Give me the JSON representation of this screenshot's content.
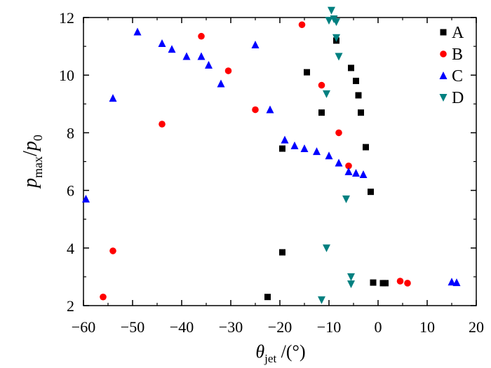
{
  "chart_data": {
    "type": "scatter",
    "title": "",
    "xlabel": {
      "symbol": "θ",
      "subscript": "jet",
      "unit": " /(°)"
    },
    "ylabel": {
      "numerator": "p",
      "numerator_sub": "max",
      "slash": "/",
      "denominator": "p",
      "denominator_sub": "0"
    },
    "xlim": [
      -60,
      20
    ],
    "ylim": [
      2,
      12
    ],
    "xticks": [
      -60,
      -50,
      -40,
      -30,
      -20,
      -10,
      0,
      10,
      20
    ],
    "yticks": [
      2,
      4,
      6,
      8,
      10,
      12
    ],
    "grid": false,
    "legend_position": "top-right",
    "series": [
      {
        "name": "A",
        "marker": "square",
        "color": "#000000",
        "points": [
          [
            -22.5,
            2.3
          ],
          [
            -19.5,
            3.85
          ],
          [
            -19.5,
            7.45
          ],
          [
            -14.5,
            10.1
          ],
          [
            -11.5,
            8.7
          ],
          [
            -8.5,
            11.2
          ],
          [
            -5.5,
            10.25
          ],
          [
            -4.5,
            9.8
          ],
          [
            -4.0,
            9.3
          ],
          [
            -3.5,
            8.7
          ],
          [
            -2.5,
            7.5
          ],
          [
            -1.5,
            5.95
          ],
          [
            -1.0,
            2.8
          ],
          [
            1.0,
            2.78
          ],
          [
            1.5,
            2.78
          ]
        ]
      },
      {
        "name": "B",
        "marker": "circle",
        "color": "#ff0000",
        "points": [
          [
            -56.0,
            2.3
          ],
          [
            -54.0,
            3.9
          ],
          [
            -44.0,
            8.3
          ],
          [
            -36.0,
            11.35
          ],
          [
            -30.5,
            10.15
          ],
          [
            -25.0,
            8.8
          ],
          [
            -15.5,
            11.75
          ],
          [
            -11.5,
            9.65
          ],
          [
            -8.0,
            8.0
          ],
          [
            -6.0,
            6.85
          ],
          [
            4.5,
            2.85
          ],
          [
            6.0,
            2.78
          ]
        ]
      },
      {
        "name": "C",
        "marker": "triangle-up",
        "color": "#0000ff",
        "points": [
          [
            -59.5,
            5.7
          ],
          [
            -54.0,
            9.2
          ],
          [
            -49.0,
            11.5
          ],
          [
            -44.0,
            11.1
          ],
          [
            -42.0,
            10.9
          ],
          [
            -39.0,
            10.65
          ],
          [
            -36.0,
            10.65
          ],
          [
            -34.5,
            10.35
          ],
          [
            -32.0,
            9.7
          ],
          [
            -25.0,
            11.05
          ],
          [
            -22.0,
            8.8
          ],
          [
            -19.0,
            7.75
          ],
          [
            -17.0,
            7.55
          ],
          [
            -15.0,
            7.45
          ],
          [
            -12.5,
            7.35
          ],
          [
            -10.0,
            7.2
          ],
          [
            -8.0,
            6.95
          ],
          [
            -6.0,
            6.65
          ],
          [
            -4.5,
            6.6
          ],
          [
            -3.0,
            6.55
          ],
          [
            15.0,
            2.82
          ],
          [
            16.0,
            2.8
          ]
        ]
      },
      {
        "name": "D",
        "marker": "triangle-down",
        "color": "#008080",
        "points": [
          [
            -11.5,
            2.2
          ],
          [
            -10.5,
            4.0
          ],
          [
            -10.5,
            9.35
          ],
          [
            -10.0,
            11.9
          ],
          [
            -9.5,
            12.25
          ],
          [
            -9.0,
            11.95
          ],
          [
            -8.5,
            11.85
          ],
          [
            -8.5,
            11.3
          ],
          [
            -8.0,
            10.65
          ],
          [
            -6.5,
            5.7
          ],
          [
            -5.5,
            3.0
          ],
          [
            -5.5,
            2.75
          ]
        ]
      }
    ]
  }
}
